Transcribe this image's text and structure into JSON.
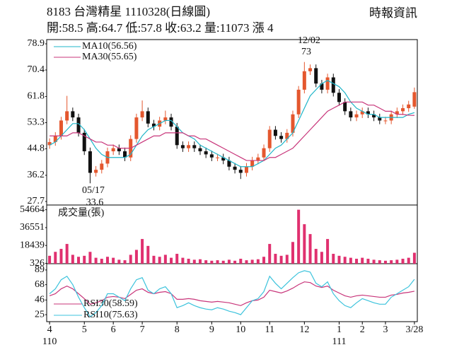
{
  "chart_data": {
    "type": "candlestick",
    "title": "8183 台灣精星 1110328(日線圖)",
    "subtitle": "開:58.5 高:64.7 低:57.8 收:63.2 量:11073 漲 4",
    "source": "時報資訊",
    "categories": [
      "4",
      null,
      null,
      null,
      null,
      null,
      "5",
      null,
      null,
      null,
      null,
      "6",
      null,
      null,
      null,
      null,
      "7",
      null,
      null,
      null,
      null,
      null,
      "8",
      null,
      null,
      null,
      null,
      null,
      "9",
      null,
      null,
      null,
      null,
      "10",
      null,
      null,
      null,
      null,
      "11",
      null,
      null,
      null,
      null,
      null,
      "12",
      null,
      null,
      null,
      null,
      null,
      "1",
      null,
      null,
      null,
      "2",
      null,
      null,
      null,
      "3",
      null,
      null,
      null,
      null,
      "3/28"
    ],
    "category_years": [
      "110",
      null,
      null,
      null,
      null,
      null,
      null,
      null,
      null,
      null,
      null,
      null,
      null,
      null,
      null,
      null,
      null,
      null,
      null,
      null,
      null,
      null,
      null,
      null,
      null,
      null,
      null,
      null,
      null,
      null,
      null,
      null,
      null,
      null,
      null,
      null,
      null,
      null,
      null,
      null,
      null,
      null,
      null,
      null,
      null,
      null,
      null,
      null,
      null,
      null,
      "111",
      null,
      null,
      null,
      null,
      null,
      null,
      null,
      null,
      null,
      null,
      null,
      null,
      null
    ],
    "up_color": "#e4572e",
    "down_color": "#111111",
    "ohlc": [
      [
        46,
        48.2,
        44.8,
        47
      ],
      [
        47,
        50.2,
        45.8,
        49
      ],
      [
        49,
        55.2,
        47.8,
        54
      ],
      [
        54,
        62,
        52.8,
        57
      ],
      [
        57,
        58.2,
        53.8,
        55
      ],
      [
        55,
        56.2,
        48.8,
        50
      ],
      [
        50,
        51.2,
        42.8,
        44
      ],
      [
        44,
        45.2,
        33.6,
        37
      ],
      [
        37,
        39.2,
        35.8,
        38
      ],
      [
        38,
        41.2,
        36.8,
        40
      ],
      [
        40,
        45.2,
        38.8,
        44
      ],
      [
        44,
        46.2,
        42.8,
        45
      ],
      [
        45,
        46.2,
        42.8,
        44
      ],
      [
        44,
        45.2,
        40.8,
        42
      ],
      [
        42,
        49.2,
        40.8,
        48
      ],
      [
        48,
        56.2,
        46.8,
        55
      ],
      [
        55,
        60.5,
        53.8,
        57
      ],
      [
        57,
        58.2,
        51.8,
        53
      ],
      [
        53,
        54.2,
        50.8,
        52
      ],
      [
        52,
        55.2,
        50.8,
        54
      ],
      [
        54,
        57.2,
        52.8,
        55
      ],
      [
        55,
        56.2,
        50.8,
        52
      ],
      [
        52,
        53.2,
        44.8,
        46
      ],
      [
        46,
        47.2,
        43.8,
        45
      ],
      [
        45,
        47.2,
        43.8,
        46
      ],
      [
        46,
        47.2,
        43.8,
        45
      ],
      [
        45,
        46.2,
        42.8,
        44
      ],
      [
        44,
        45.2,
        41.8,
        43
      ],
      [
        43,
        44.2,
        40.8,
        42
      ],
      [
        42,
        43.2,
        40.8,
        42
      ],
      [
        42,
        43.2,
        39.8,
        41
      ],
      [
        41,
        42.2,
        37.8,
        39
      ],
      [
        39,
        40.2,
        36.8,
        38
      ],
      [
        38,
        39.2,
        35,
        37
      ],
      [
        37,
        40.2,
        35.8,
        39
      ],
      [
        39,
        42.2,
        37.8,
        41
      ],
      [
        41,
        43.2,
        39.8,
        42
      ],
      [
        42,
        46.2,
        40.8,
        45
      ],
      [
        45,
        52.2,
        43.8,
        51
      ],
      [
        51,
        52.2,
        47.8,
        49
      ],
      [
        49,
        50.2,
        46.8,
        48
      ],
      [
        48,
        51.2,
        46.8,
        50
      ],
      [
        50,
        57.2,
        48.8,
        56
      ],
      [
        56,
        65.2,
        54.8,
        64
      ],
      [
        64,
        73,
        62.8,
        70
      ],
      [
        70,
        72.2,
        68.8,
        71
      ],
      [
        71,
        72.2,
        64.8,
        66
      ],
      [
        66,
        67.2,
        62.8,
        64
      ],
      [
        64,
        69.2,
        62.8,
        68
      ],
      [
        68,
        69.2,
        61.8,
        63
      ],
      [
        63,
        64.2,
        58.8,
        60
      ],
      [
        60,
        61.2,
        55.8,
        57
      ],
      [
        57,
        58.2,
        53.8,
        55
      ],
      [
        55,
        57.2,
        53.8,
        56
      ],
      [
        56,
        58.2,
        54.8,
        57
      ],
      [
        57,
        58.2,
        54.8,
        56
      ],
      [
        56,
        57.2,
        53.8,
        55
      ],
      [
        55,
        56.2,
        52.8,
        54
      ],
      [
        54,
        55.2,
        52.8,
        54
      ],
      [
        54,
        57.2,
        52.8,
        56
      ],
      [
        56,
        58.2,
        54.8,
        57
      ],
      [
        57,
        59.2,
        55.8,
        58
      ],
      [
        58,
        60.4,
        56.8,
        59.2
      ],
      [
        58.5,
        64.7,
        57.8,
        63.2
      ]
    ],
    "ylim": [
      27.7,
      78.9
    ],
    "yticks": [
      78.9,
      70.4,
      61.8,
      53.3,
      44.8,
      36.2,
      27.7
    ],
    "series": [
      {
        "name": "MA10(56.56)",
        "color": "#1fb5c9",
        "values": [
          46,
          47,
          49,
          51,
          53,
          53,
          51,
          48,
          45,
          43,
          42,
          42,
          42,
          42,
          43,
          46,
          49,
          51,
          52,
          53,
          54,
          54,
          52,
          50,
          49,
          48,
          46,
          45,
          44,
          43,
          42,
          41,
          40,
          39,
          39,
          39,
          40,
          41,
          43,
          45,
          46,
          48,
          50,
          54,
          58,
          62,
          64,
          66,
          67,
          66,
          65,
          63,
          60,
          58,
          57,
          56,
          56,
          55,
          55,
          55,
          55,
          55,
          56,
          56.56
        ]
      },
      {
        "name": "MA30(55.65)",
        "color": "#c8357a",
        "values": [
          49,
          49,
          49,
          49,
          50,
          50,
          49,
          48,
          47,
          47,
          46,
          46,
          45,
          45,
          45,
          46,
          47,
          48,
          49,
          49,
          50,
          50,
          50,
          50,
          49,
          49,
          48,
          48,
          47,
          46,
          45,
          44,
          43,
          42,
          41,
          41,
          41,
          41,
          42,
          42,
          43,
          44,
          45,
          47,
          49,
          51,
          53,
          55,
          57,
          58,
          59,
          60,
          60,
          60,
          60,
          59,
          59,
          58,
          57,
          57,
          56,
          56,
          55.7,
          55.65
        ]
      }
    ],
    "annotations": [
      {
        "date": "12/02",
        "value": 73
      },
      {
        "date": "05/17",
        "value": 33.6
      }
    ],
    "volume": {
      "name": "成交量(張)",
      "color": "#e0306f",
      "ylim": [
        0,
        58000
      ],
      "yticks": [
        54664,
        36551,
        18439,
        326
      ],
      "values": [
        8000,
        12000,
        15000,
        20000,
        9000,
        7000,
        8000,
        12000,
        6000,
        5000,
        7000,
        6000,
        4000,
        3500,
        9000,
        14000,
        25000,
        18000,
        8000,
        7000,
        9000,
        6000,
        10000,
        6000,
        5000,
        4000,
        4500,
        3500,
        3000,
        3500,
        3000,
        4000,
        3000,
        5000,
        3500,
        4000,
        4500,
        7000,
        20000,
        10000,
        8000,
        9000,
        22000,
        54664,
        40000,
        30000,
        15000,
        12000,
        25000,
        10000,
        8000,
        7000,
        6000,
        5000,
        6000,
        5000,
        4000,
        3500,
        3000,
        3500,
        4000,
        5000,
        6000,
        11073
      ]
    },
    "rsi": {
      "ylim": [
        15,
        98
      ],
      "yticks": [
        89,
        68,
        46,
        25
      ],
      "series": [
        {
          "name": "RSI30(58.59)",
          "color": "#c8357a",
          "values": [
            52,
            55,
            62,
            66,
            62,
            55,
            48,
            40,
            42,
            45,
            50,
            51,
            50,
            48,
            54,
            60,
            62,
            57,
            55,
            57,
            58,
            55,
            47,
            47,
            48,
            47,
            45,
            44,
            43,
            44,
            43,
            42,
            40,
            38,
            42,
            45,
            46,
            50,
            60,
            58,
            56,
            59,
            63,
            68,
            72,
            71,
            66,
            64,
            66,
            60,
            56,
            52,
            50,
            52,
            53,
            52,
            51,
            50,
            50,
            53,
            54,
            56,
            57,
            58.59
          ]
        },
        {
          "name": "RSI10(75.63)",
          "color": "#3cc3dc",
          "values": [
            55,
            62,
            75,
            80,
            68,
            50,
            35,
            22,
            28,
            38,
            55,
            55,
            50,
            45,
            62,
            75,
            78,
            60,
            55,
            62,
            65,
            55,
            35,
            38,
            42,
            38,
            35,
            33,
            32,
            35,
            33,
            30,
            28,
            25,
            35,
            45,
            48,
            58,
            80,
            70,
            62,
            70,
            78,
            85,
            88,
            86,
            70,
            65,
            72,
            55,
            45,
            38,
            35,
            42,
            48,
            45,
            42,
            40,
            40,
            50,
            55,
            60,
            65,
            75.63
          ]
        }
      ]
    }
  }
}
